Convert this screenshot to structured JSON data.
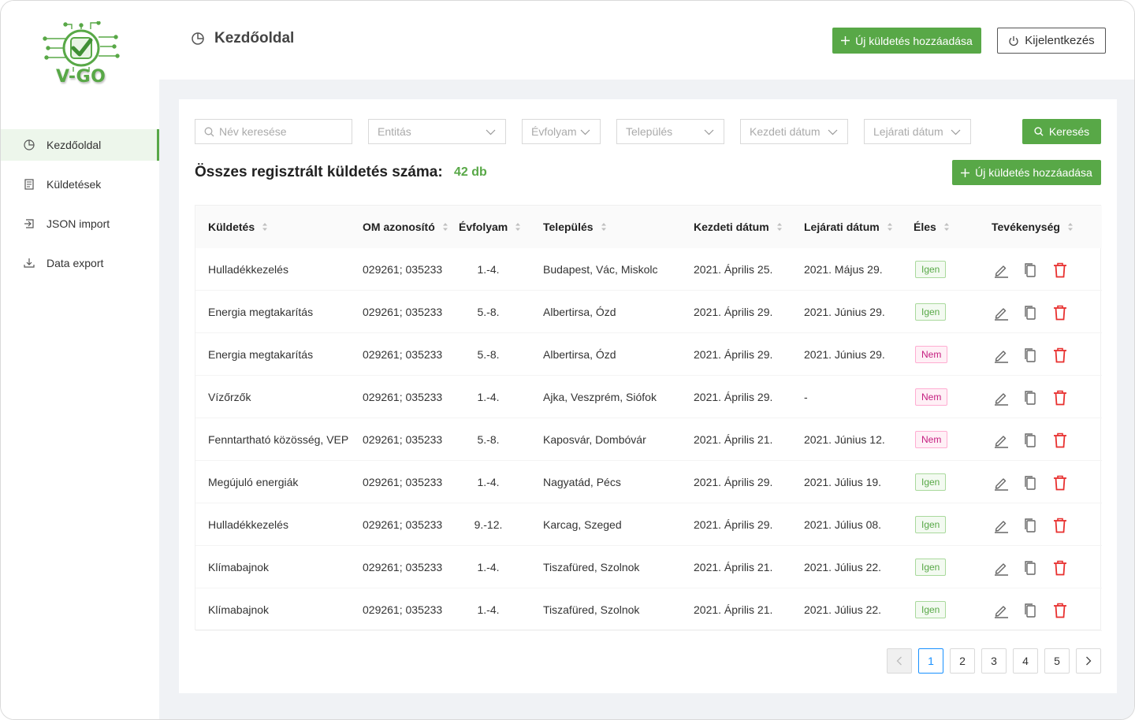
{
  "brand": {
    "name": "V-GO",
    "accent": "#58a847"
  },
  "sidebar": {
    "items": [
      {
        "label": "Kezdőoldal",
        "icon": "pie-chart-icon",
        "active": true
      },
      {
        "label": "Küldetések",
        "icon": "task-list-icon",
        "active": false
      },
      {
        "label": "JSON import",
        "icon": "import-icon",
        "active": false
      },
      {
        "label": "Data export",
        "icon": "download-icon",
        "active": false
      }
    ]
  },
  "header": {
    "title": "Kezdőoldal",
    "add_label": "Új küldetés hozzáadása",
    "logout_label": "Kijelentkezés"
  },
  "filters": {
    "name_placeholder": "Név keresése",
    "entity": "Entitás",
    "grade": "Évfolyam",
    "city": "Település",
    "start_date": "Kezdeti dátum",
    "end_date": "Lejárati dátum",
    "search_label": "Keresés"
  },
  "summary": {
    "label": "Összes regisztrált küldetés száma:",
    "count": "42 db",
    "add_label": "Új küldetés hozzáadása"
  },
  "table": {
    "columns": [
      "Küldetés",
      "OM azonosító",
      "Évfolyam",
      "Település",
      "Kezdeti dátum",
      "Lejárati dátum",
      "Éles",
      "Tevékenység"
    ],
    "rows": [
      {
        "mission": "Hulladékkezelés",
        "om": "029261; 035233",
        "grade": "1.-4.",
        "city": "Budapest, Vác, Miskolc",
        "start": "2021. Április 25.",
        "end": "2021. Május 29.",
        "live": "Igen",
        "live_yes": true
      },
      {
        "mission": "Energia megtakarítás",
        "om": "029261; 035233",
        "grade": "5.-8.",
        "city": "Albertirsa, Ózd",
        "start": "2021. Április 29.",
        "end": "2021. Június 29.",
        "live": "Igen",
        "live_yes": true
      },
      {
        "mission": "Energia megtakarítás",
        "om": "029261; 035233",
        "grade": "5.-8.",
        "city": "Albertirsa, Ózd",
        "start": "2021. Április 29.",
        "end": "2021. Június 29.",
        "live": "Nem",
        "live_yes": false
      },
      {
        "mission": "Vízőrzők",
        "om": "029261; 035233",
        "grade": "1.-4.",
        "city": "Ajka, Veszprém, Siófok",
        "start": "2021. Április 29.",
        "end": "-",
        "live": "Nem",
        "live_yes": false
      },
      {
        "mission": "Fenntartható közösség, VEP",
        "om": "029261; 035233",
        "grade": "5.-8.",
        "city": "Kaposvár, Dombóvár",
        "start": "2021. Április 21.",
        "end": "2021. Június 12.",
        "live": "Nem",
        "live_yes": false
      },
      {
        "mission": "Megújuló energiák",
        "om": "029261; 035233",
        "grade": "1.-4.",
        "city": "Nagyatád, Pécs",
        "start": "2021. Április 29.",
        "end": "2021. Július 19.",
        "live": "Igen",
        "live_yes": true
      },
      {
        "mission": "Hulladékkezelés",
        "om": "029261; 035233",
        "grade": "9.-12.",
        "city": "Karcag, Szeged",
        "start": "2021. Április 29.",
        "end": "2021. Július 08.",
        "live": "Igen",
        "live_yes": true
      },
      {
        "mission": "Klímabajnok",
        "om": "029261; 035233",
        "grade": "1.-4.",
        "city": "Tiszafüred, Szolnok",
        "start": "2021. Április 21.",
        "end": "2021. Július 22.",
        "live": "Igen",
        "live_yes": true
      },
      {
        "mission": "Klímabajnok",
        "om": "029261; 035233",
        "grade": "1.-4.",
        "city": "Tiszafüred, Szolnok",
        "start": "2021. Április 21.",
        "end": "2021. Július 22.",
        "live": "Igen",
        "live_yes": true
      }
    ]
  },
  "pagination": {
    "pages": [
      "1",
      "2",
      "3",
      "4",
      "5"
    ],
    "current": "1"
  }
}
